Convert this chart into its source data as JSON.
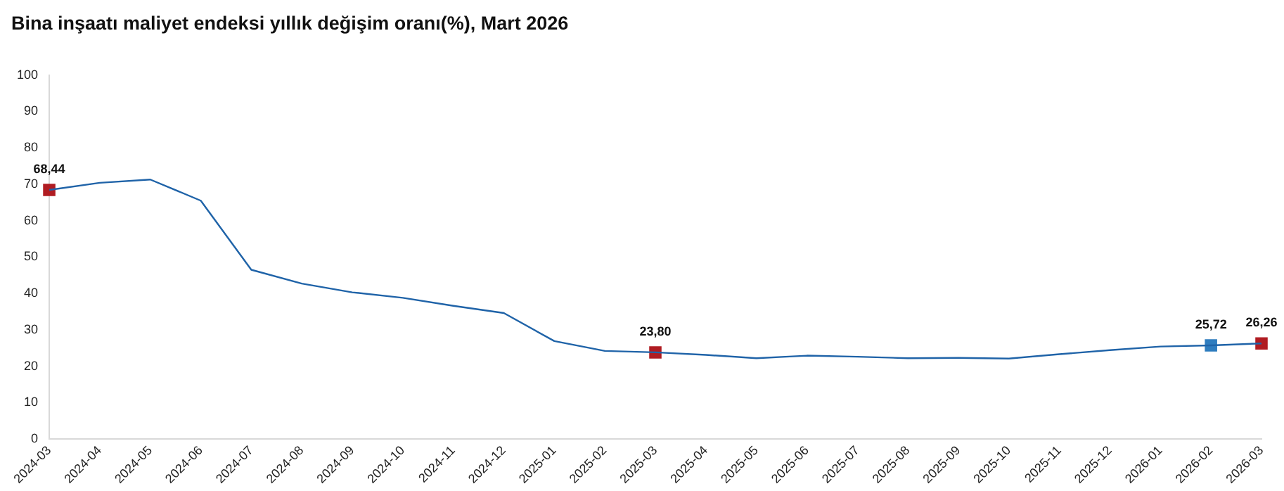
{
  "chart_data": {
    "type": "line",
    "title": "Bina inşaatı maliyet endeksi yıllık değişim oranı(%), Mart 2026",
    "categories": [
      "2024-03",
      "2024-04",
      "2024-05",
      "2024-06",
      "2024-07",
      "2024-08",
      "2024-09",
      "2024-10",
      "2024-11",
      "2024-12",
      "2025-01",
      "2025-02",
      "2025-03",
      "2025-04",
      "2025-05",
      "2025-06",
      "2025-07",
      "2025-08",
      "2025-09",
      "2025-10",
      "2025-11",
      "2025-12",
      "2026-01",
      "2026-02",
      "2026-03"
    ],
    "series": [
      {
        "color": "#1f63a8",
        "marker": "none",
        "values": [
          68.44,
          70.4,
          71.3,
          65.5,
          46.5,
          42.7,
          40.3,
          38.8,
          36.6,
          34.6,
          26.9,
          24.2,
          23.8,
          23.1,
          22.2,
          22.9,
          22.6,
          22.2,
          22.3,
          22.1,
          23.3,
          24.4,
          25.4,
          25.72,
          26.26
        ]
      },
      {
        "type": "scatter",
        "marker": "square",
        "values": [
          68.44,
          null,
          null,
          null,
          null,
          null,
          null,
          null,
          null,
          null,
          null,
          null,
          23.8,
          null,
          null,
          null,
          null,
          null,
          null,
          null,
          null,
          null,
          null,
          25.72,
          26.26
        ],
        "colors": [
          "#b01c22",
          null,
          null,
          null,
          null,
          null,
          null,
          null,
          null,
          null,
          null,
          null,
          "#b01c22",
          null,
          null,
          null,
          null,
          null,
          null,
          null,
          null,
          null,
          null,
          "#2f7dbf",
          "#b01c22"
        ],
        "value_labels": [
          "68,44",
          null,
          null,
          null,
          null,
          null,
          null,
          null,
          null,
          null,
          null,
          null,
          "23,80",
          null,
          null,
          null,
          null,
          null,
          null,
          null,
          null,
          null,
          null,
          "25,72",
          "26,26"
        ]
      }
    ],
    "ylim": [
      0,
      100
    ],
    "yticks": [
      0,
      10,
      20,
      30,
      40,
      50,
      60,
      70,
      80,
      90,
      100
    ],
    "grid": false,
    "legend": false
  }
}
